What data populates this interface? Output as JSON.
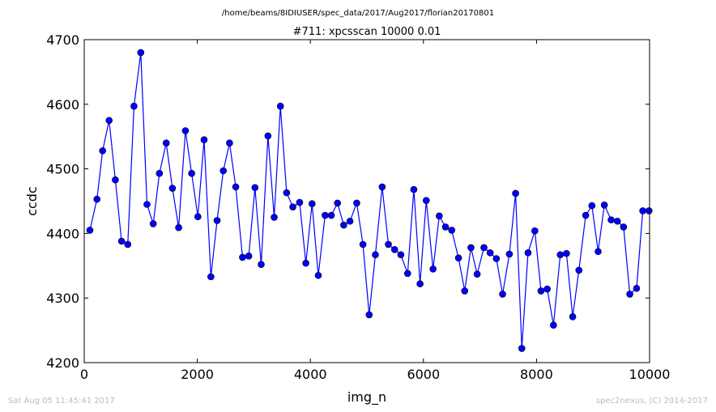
{
  "supertitle": "/home/beams/8IDIUSER/spec_data/2017/Aug2017/florian20170801",
  "footer_left": "Sat Aug 05 11:45:41 2017",
  "footer_right": "spec2nexus, (C) 2014-2017",
  "chart_data": {
    "type": "line",
    "title": "#711: xpcsscan 10000 0.01",
    "xlabel": "img_n",
    "ylabel": "ccdc",
    "xlim": [
      0,
      10000
    ],
    "ylim": [
      4200,
      4700
    ],
    "x_ticks": [
      0,
      2000,
      4000,
      6000,
      8000,
      10000
    ],
    "y_ticks": [
      4200,
      4300,
      4400,
      4500,
      4600,
      4700
    ],
    "grid": false,
    "colors": {
      "line": "#0000ff",
      "marker": "#0000ff"
    },
    "series": [
      {
        "marker": "circle",
        "x": [
          100,
          225,
          325,
          440,
          550,
          660,
          770,
          880,
          1000,
          1110,
          1220,
          1330,
          1450,
          1560,
          1670,
          1790,
          1900,
          2010,
          2120,
          2240,
          2350,
          2460,
          2570,
          2680,
          2800,
          2910,
          3020,
          3130,
          3250,
          3360,
          3470,
          3580,
          3690,
          3810,
          3920,
          4030,
          4140,
          4260,
          4370,
          4480,
          4590,
          4700,
          4820,
          4930,
          5040,
          5150,
          5270,
          5380,
          5490,
          5600,
          5720,
          5830,
          5940,
          6050,
          6170,
          6280,
          6390,
          6500,
          6620,
          6730,
          6840,
          6950,
          7070,
          7180,
          7290,
          7400,
          7520,
          7630,
          7740,
          7850,
          7970,
          8080,
          8190,
          8300,
          8420,
          8530,
          8640,
          8750,
          8870,
          8980,
          9090,
          9200,
          9320,
          9430,
          9540,
          9650,
          9770,
          9880,
          9990
        ],
        "y": [
          4405,
          4453,
          4528,
          4575,
          4483,
          4388,
          4383,
          4597,
          4680,
          4445,
          4415,
          4493,
          4540,
          4470,
          4409,
          4559,
          4493,
          4426,
          4545,
          4333,
          4420,
          4497,
          4540,
          4472,
          4363,
          4365,
          4471,
          4352,
          4551,
          4425,
          4597,
          4463,
          4441,
          4448,
          4354,
          4446,
          4335,
          4428,
          4428,
          4447,
          4413,
          4419,
          4447,
          4383,
          4274,
          4367,
          4472,
          4383,
          4375,
          4367,
          4338,
          4468,
          4322,
          4451,
          4345,
          4427,
          4410,
          4405,
          4362,
          4311,
          4378,
          4337,
          4378,
          4370,
          4361,
          4306,
          4368,
          4462,
          4222,
          4370,
          4404,
          4311,
          4314,
          4258,
          4367,
          4369,
          4271,
          4343,
          4428,
          4443,
          4372,
          4444,
          4421,
          4419,
          4410,
          4306,
          4315,
          4435,
          4435
        ]
      }
    ]
  }
}
